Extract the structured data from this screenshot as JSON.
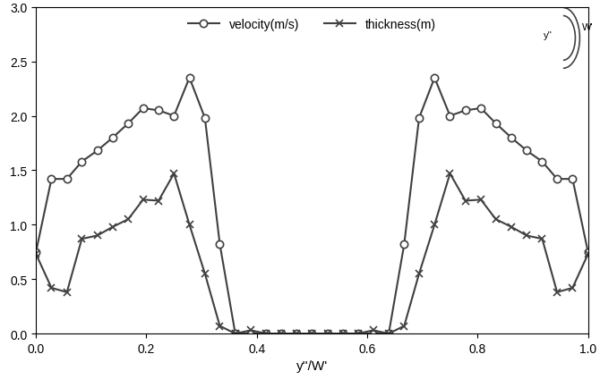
{
  "chart_data": {
    "type": "line",
    "xlabel": "y''/W'",
    "annotations": [
      "W'",
      "y''"
    ],
    "x": [
      0.0,
      0.028,
      0.056,
      0.083,
      0.111,
      0.139,
      0.167,
      0.194,
      0.222,
      0.25,
      0.278,
      0.306,
      0.333,
      0.361,
      0.389,
      0.417,
      0.444,
      0.472,
      0.5,
      0.528,
      0.556,
      0.583,
      0.611,
      0.639,
      0.667,
      0.694,
      0.722,
      0.75,
      0.778,
      0.806,
      0.833,
      0.861,
      0.889,
      0.917,
      0.944,
      0.972,
      1.0
    ],
    "series": [
      {
        "name": "velocity(m/s)",
        "color": "#404040",
        "marker": "o",
        "line_style": "solid",
        "values": [
          0.75,
          1.42,
          1.42,
          1.58,
          1.68,
          1.8,
          1.93,
          2.07,
          2.05,
          2.0,
          2.35,
          1.98,
          0.82,
          0.0,
          0.0,
          0.0,
          0.0,
          0.0,
          0.0,
          0.0,
          0.0,
          0.0,
          0.0,
          0.0,
          0.82,
          1.98,
          2.35,
          2.0,
          2.05,
          2.07,
          1.93,
          1.8,
          1.68,
          1.58,
          1.42,
          1.42,
          0.75
        ]
      },
      {
        "name": "thickness(m)",
        "color": "#404040",
        "marker": "x",
        "line_style": "solid",
        "values": [
          0.73,
          0.42,
          0.38,
          0.87,
          0.9,
          0.98,
          1.05,
          1.23,
          1.22,
          1.47,
          1.0,
          0.55,
          0.07,
          0.0,
          0.03,
          0.0,
          0.0,
          0.0,
          0.0,
          0.0,
          0.0,
          0.0,
          0.03,
          0.0,
          0.07,
          0.55,
          1.0,
          1.47,
          1.22,
          1.23,
          1.05,
          0.98,
          0.9,
          0.87,
          0.38,
          0.42,
          0.73
        ]
      }
    ],
    "xlim": [
      0.0,
      1.0
    ],
    "xticks": [
      {
        "value": 0.0,
        "label": "0.0"
      },
      0.2,
      0.4,
      0.6,
      0.8,
      {
        "value": 1.0,
        "label": "1.0"
      }
    ],
    "ylim": [
      0.0,
      3.0
    ],
    "yticks": [
      {
        "value": 0.0,
        "label": "0.0"
      },
      0.5,
      {
        "value": 1.0,
        "label": "1.0"
      },
      1.5,
      {
        "value": 2.0,
        "label": "2.0"
      },
      2.5,
      {
        "value": 3.0,
        "label": "3.0"
      }
    ],
    "grid": false,
    "legend": "upper center"
  }
}
